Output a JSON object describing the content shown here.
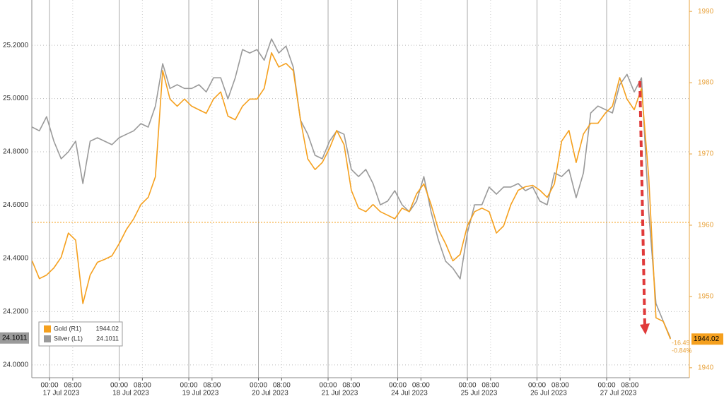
{
  "chart_data": {
    "type": "line",
    "x": [
      -6,
      -3.5,
      -1,
      1.5,
      4,
      6.5,
      9,
      11.5,
      14,
      16.5,
      19,
      21.5,
      24,
      26.5,
      29,
      31.5,
      34,
      36.5,
      39,
      41.5,
      44,
      46.5,
      49,
      51.5,
      54,
      56.5,
      59,
      61.5,
      64,
      66.5,
      69,
      71.5,
      74,
      76.5,
      79,
      81.5,
      84,
      86.5,
      89,
      91.5,
      94,
      96.5,
      99,
      101.5,
      104,
      106.5,
      109,
      111.5,
      114,
      116.5,
      119,
      121.5,
      124,
      126.5,
      129,
      131.5,
      134,
      136.5,
      139,
      141.5,
      144,
      146.5,
      149,
      151.5,
      154,
      156.5,
      159,
      161.5,
      164,
      166.5,
      169,
      171.5,
      174,
      176.5,
      179,
      181.5,
      184,
      186.5,
      189,
      191.5,
      194,
      196.5,
      199,
      201.5,
      204,
      206.5,
      209,
      211.5,
      214
    ],
    "series": [
      {
        "name": "Gold (R1)",
        "color": "#f5a01e",
        "axis": "y2",
        "last_label": "1944.02",
        "change": "-16.49",
        "change_pct": "-0.84%",
        "values": [
          1955.0,
          1952.5,
          1953.0,
          1954.0,
          1955.5,
          1958.9,
          1957.9,
          1949.0,
          1953.0,
          1954.8,
          1955.2,
          1955.7,
          1957.4,
          1959.4,
          1960.9,
          1962.9,
          1963.9,
          1966.8,
          1981.7,
          1977.7,
          1976.7,
          1977.7,
          1976.7,
          1976.2,
          1975.7,
          1977.7,
          1978.7,
          1975.3,
          1974.8,
          1976.7,
          1977.7,
          1977.7,
          1979.2,
          1984.2,
          1982.2,
          1982.7,
          1981.7,
          1974.8,
          1969.3,
          1967.8,
          1968.8,
          1970.8,
          1973.3,
          1971.3,
          1964.9,
          1962.4,
          1961.9,
          1962.9,
          1961.9,
          1961.4,
          1960.9,
          1962.4,
          1961.9,
          1964.4,
          1965.8,
          1962.9,
          1959.4,
          1957.4,
          1955.0,
          1955.9,
          1959.9,
          1961.9,
          1962.4,
          1961.9,
          1958.9,
          1959.9,
          1962.9,
          1964.9,
          1965.4,
          1965.6,
          1964.9,
          1963.9,
          1965.8,
          1971.8,
          1973.3,
          1968.8,
          1972.8,
          1974.3,
          1974.3,
          1975.7,
          1976.7,
          1980.7,
          1977.7,
          1976.2,
          1979.2,
          1966.8,
          1947.0,
          1946.5,
          1944.02
        ]
      },
      {
        "name": "Silver (L1)",
        "color": "#9a9a9a",
        "axis": "y",
        "last_label": "24.1011",
        "values": [
          24.893,
          24.879,
          24.932,
          24.84,
          24.774,
          24.8,
          24.84,
          24.681,
          24.84,
          24.853,
          24.84,
          24.827,
          24.853,
          24.866,
          24.879,
          24.906,
          24.893,
          24.972,
          25.131,
          25.038,
          25.052,
          25.038,
          25.038,
          25.052,
          25.025,
          25.078,
          25.078,
          24.999,
          25.078,
          25.184,
          25.171,
          25.184,
          25.144,
          25.224,
          25.171,
          25.197,
          25.118,
          24.919,
          24.866,
          24.787,
          24.774,
          24.84,
          24.879,
          24.866,
          24.734,
          24.707,
          24.734,
          24.681,
          24.601,
          24.615,
          24.654,
          24.601,
          24.575,
          24.615,
          24.707,
          24.575,
          24.469,
          24.389,
          24.363,
          24.323,
          24.495,
          24.601,
          24.601,
          24.668,
          24.641,
          24.668,
          24.668,
          24.681,
          24.654,
          24.668,
          24.615,
          24.601,
          24.721,
          24.707,
          24.734,
          24.628,
          24.721,
          24.946,
          24.972,
          24.959,
          24.946,
          25.052,
          25.091,
          25.025,
          25.078,
          24.575,
          24.23,
          24.164,
          24.1011
        ]
      }
    ],
    "xlim": [
      -6.1,
      220.5
    ],
    "xticks": [
      {
        "value": 0,
        "label": "00:00"
      },
      {
        "value": 8,
        "label": "08:00"
      },
      {
        "value": 24,
        "label": "00:00"
      },
      {
        "value": 32,
        "label": "08:00"
      },
      {
        "value": 48,
        "label": "00:00"
      },
      {
        "value": 56,
        "label": "08:00"
      },
      {
        "value": 72,
        "label": "00:00"
      },
      {
        "value": 80,
        "label": "08:00"
      },
      {
        "value": 96,
        "label": "00:00"
      },
      {
        "value": 104,
        "label": "08:00"
      },
      {
        "value": 120,
        "label": "00:00"
      },
      {
        "value": 128,
        "label": "08:00"
      },
      {
        "value": 144,
        "label": "00:00"
      },
      {
        "value": 152,
        "label": "08:00"
      },
      {
        "value": 168,
        "label": "00:00"
      },
      {
        "value": 176,
        "label": "08:00"
      },
      {
        "value": 192,
        "label": "00:00"
      },
      {
        "value": 200,
        "label": "08:00"
      }
    ],
    "dates": [
      "17 Jul 2023",
      "18 Jul 2023",
      "19 Jul 2023",
      "20 Jul 2023",
      "21 Jul 2023",
      "24 Jul 2023",
      "25 Jul 2023",
      "26 Jul 2023",
      "27 Jul 2023"
    ],
    "ylim": [
      23.952,
      25.37
    ],
    "yticks": [
      {
        "value": 24.0,
        "label": "24.0000"
      },
      {
        "value": 24.2,
        "label": "24.2000"
      },
      {
        "value": 24.4,
        "label": "24.4000"
      },
      {
        "value": 24.6,
        "label": "24.6000"
      },
      {
        "value": 24.8,
        "label": "24.8000"
      },
      {
        "value": 25.0,
        "label": "25.0000"
      },
      {
        "value": 25.2,
        "label": "25.2000"
      }
    ],
    "y2lim": [
      1938.6,
      1991.6
    ],
    "y2ticks": [
      1940,
      1950,
      1960,
      1970,
      1980,
      1990
    ],
    "ref_line": {
      "value": 1960.4,
      "axis": "y2",
      "color": "#f5a01e"
    },
    "grid": true
  }
}
